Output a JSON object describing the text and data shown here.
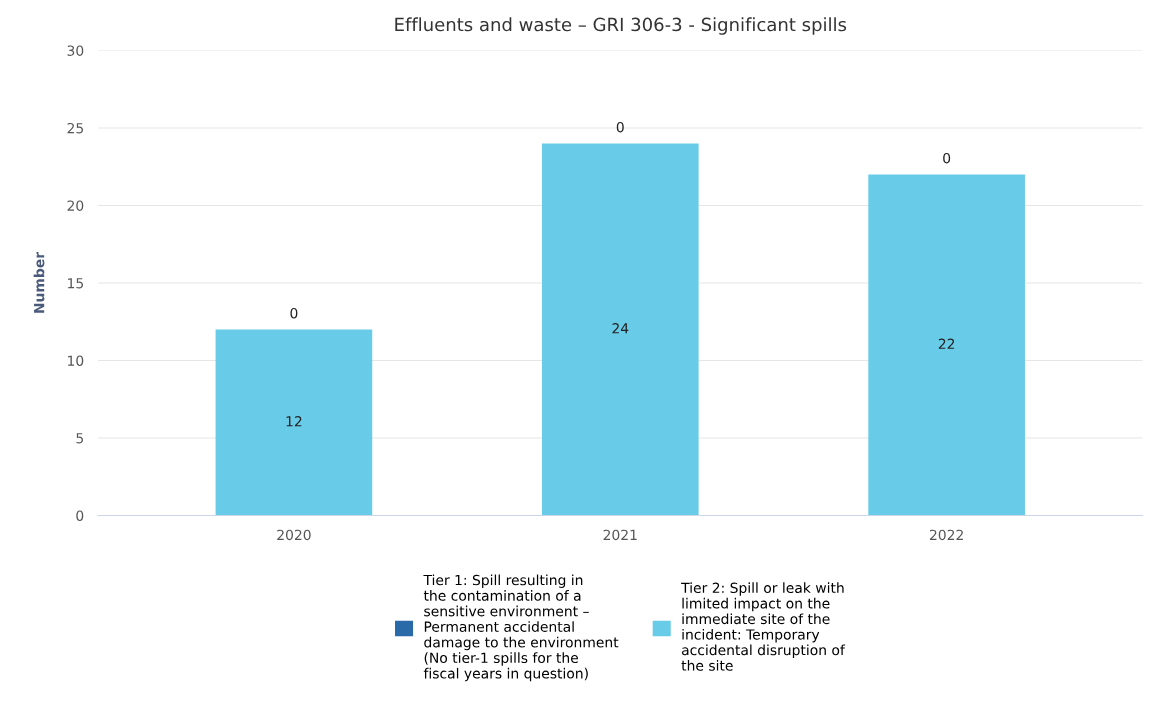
{
  "chart_data": {
    "type": "bar",
    "title": "Effluents and waste – GRI 306-3 - Significant spills",
    "ylabel": "Number",
    "categories": [
      "2020",
      "2021",
      "2022"
    ],
    "stacked": true,
    "series": [
      {
        "name": "Tier 2: Spill or leak with limited impact on the immediate site of the incident: Temporary accidental disruption of the site",
        "color": "#68cbe8",
        "values": [
          12,
          24,
          22
        ]
      },
      {
        "name": "Tier 1: Spill resulting in the contamination of a sensitive environment – Permanent accidental damage to the environment (No tier-1 spills for the fiscal years in question)",
        "color": "#2a6aa8",
        "values": [
          0,
          0,
          0
        ]
      }
    ],
    "ylim": [
      0,
      30
    ],
    "yticks": [
      0,
      5,
      10,
      15,
      20,
      25,
      30
    ],
    "grid": "y",
    "legend": "bottom",
    "data_labels": true
  }
}
